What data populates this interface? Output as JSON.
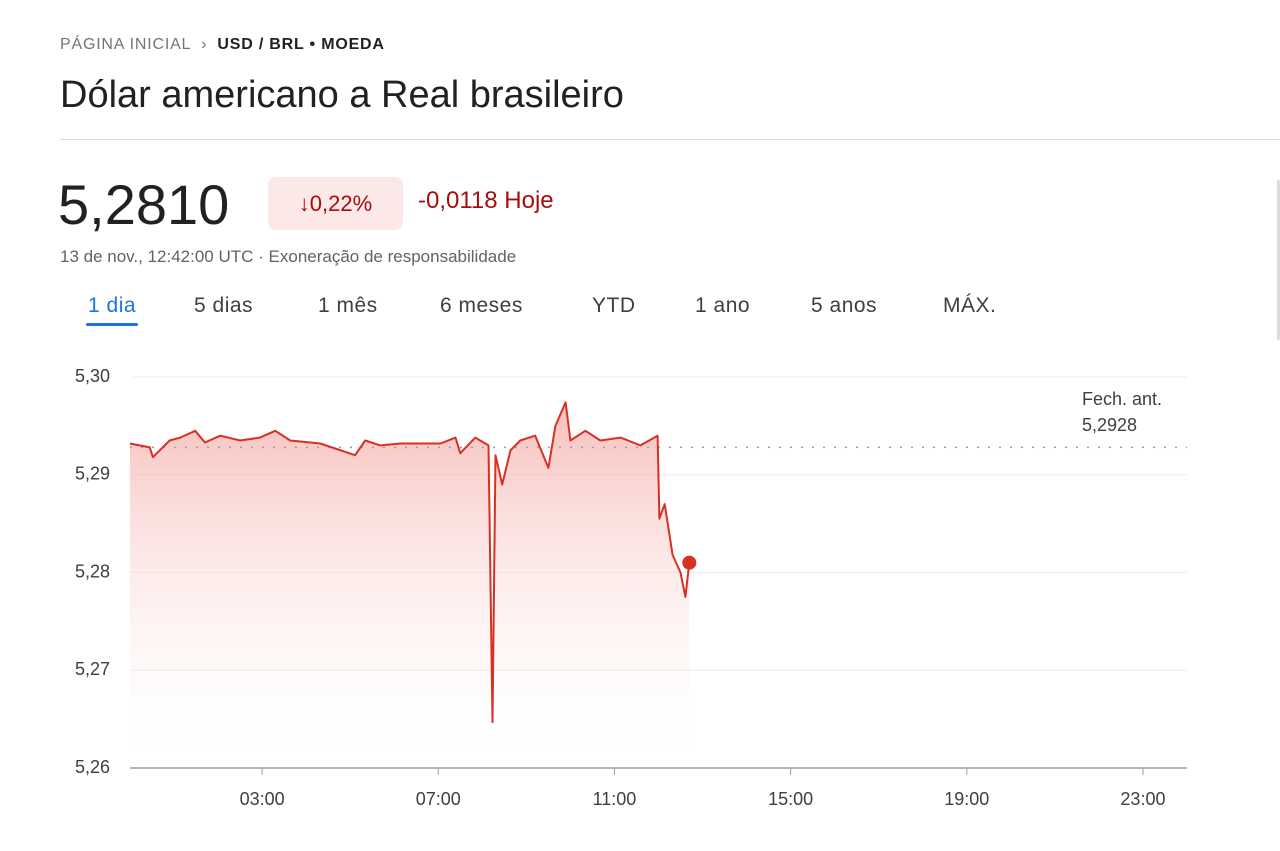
{
  "header": {
    "breadcrumb_home": "PÁGINA INICIAL",
    "breadcrumb_current": "USD / BRL • MOEDA",
    "title": "Dólar americano a Real brasileiro"
  },
  "quote": {
    "price": "5,2810",
    "change_pct": "0,22%",
    "change_abs": "-0,0118",
    "change_period": "Hoje",
    "timestamp": "13 de nov., 12:42:00 UTC",
    "disclaimer": "Exoneração de responsabilidade"
  },
  "tabs": [
    "1 dia",
    "5 dias",
    "1 mês",
    "6 meses",
    "YTD",
    "1 ano",
    "5 anos",
    "MÁX."
  ],
  "active_tab": 0,
  "chart_data": {
    "type": "line",
    "color": "#d93025",
    "x": [
      0,
      0.45,
      0.52,
      0.9,
      1.14,
      1.48,
      1.7,
      2.05,
      2.5,
      2.95,
      3.3,
      3.64,
      4.32,
      5.11,
      5.34,
      5.68,
      6.14,
      7.05,
      7.39,
      7.5,
      7.84,
      8.14,
      8.23,
      8.3,
      8.45,
      8.64,
      8.86,
      9.2,
      9.5,
      9.66,
      9.89,
      10.0,
      10.34,
      10.68,
      11.14,
      11.59,
      11.98,
      12.02,
      12.14,
      12.32,
      12.5,
      12.61,
      12.7
    ],
    "values": [
      5.2932,
      5.2928,
      5.2918,
      5.2935,
      5.2938,
      5.2945,
      5.2933,
      5.294,
      5.2935,
      5.2938,
      5.2945,
      5.2935,
      5.2932,
      5.292,
      5.2935,
      5.293,
      5.2932,
      5.2932,
      5.2938,
      5.2922,
      5.2938,
      5.293,
      5.2647,
      5.292,
      5.289,
      5.2925,
      5.2935,
      5.294,
      5.2907,
      5.295,
      5.2974,
      5.2935,
      5.2945,
      5.2935,
      5.2938,
      5.293,
      5.294,
      5.2855,
      5.287,
      5.2818,
      5.28,
      5.2775,
      5.281
    ],
    "xlim": [
      0,
      24
    ],
    "xticks": [
      {
        "value": 3,
        "label": "03:00"
      },
      {
        "value": 7,
        "label": "07:00"
      },
      {
        "value": 11,
        "label": "11:00"
      },
      {
        "value": 15,
        "label": "15:00"
      },
      {
        "value": 19,
        "label": "19:00"
      },
      {
        "value": 23,
        "label": "23:00"
      }
    ],
    "ylim": [
      5.26,
      5.3
    ],
    "yticks": [
      {
        "value": 5.26,
        "label": "5,26"
      },
      {
        "value": 5.27,
        "label": "5,27"
      },
      {
        "value": 5.28,
        "label": "5,28"
      },
      {
        "value": 5.29,
        "label": "5,29"
      },
      {
        "value": 5.3,
        "label": "5,30"
      }
    ],
    "grid": true,
    "previous_close_label": "Fech. ant.",
    "previous_close": {
      "value": 5.2928,
      "label": "5,2928"
    }
  }
}
